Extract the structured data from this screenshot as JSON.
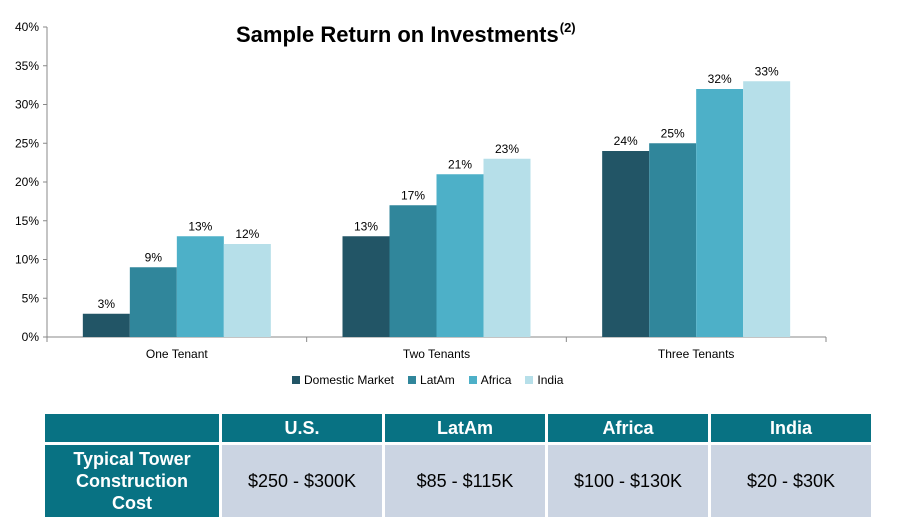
{
  "chart_data": {
    "type": "bar",
    "title": "Sample Return on Investments",
    "title_superscript": "(2)",
    "categories": [
      "One Tenant",
      "Two Tenants",
      "Three Tenants"
    ],
    "series": [
      {
        "name": "Domestic Market",
        "color": "#225566",
        "values": [
          3,
          13,
          24
        ],
        "labels": [
          "3%",
          "13%",
          "24%"
        ]
      },
      {
        "name": "LatAm",
        "color": "#30869b",
        "values": [
          9,
          17,
          25
        ],
        "labels": [
          "9%",
          "17%",
          "25%"
        ]
      },
      {
        "name": "Africa",
        "color": "#4db0c8",
        "values": [
          13,
          21,
          32
        ],
        "labels": [
          "13%",
          "21%",
          "32%"
        ]
      },
      {
        "name": "India",
        "color": "#b6dfe9",
        "values": [
          12,
          23,
          33
        ],
        "labels": [
          "12%",
          "23%",
          "33%"
        ]
      }
    ],
    "ylim": [
      0,
      40
    ],
    "yticks": [
      "0%",
      "5%",
      "10%",
      "15%",
      "20%",
      "25%",
      "30%",
      "35%",
      "40%"
    ],
    "grid": false,
    "legend": "bottom"
  },
  "table": {
    "columns": [
      "U.S.",
      "LatAm",
      "Africa",
      "India"
    ],
    "row_header_lines": [
      "Typical Tower",
      "Construction",
      "Cost"
    ],
    "values": [
      "$250 - $300K",
      "$85 - $115K",
      "$100 - $130K",
      "$20 - $30K"
    ]
  },
  "colors": {
    "header": "#087283",
    "cell": "#cbd4e2"
  }
}
